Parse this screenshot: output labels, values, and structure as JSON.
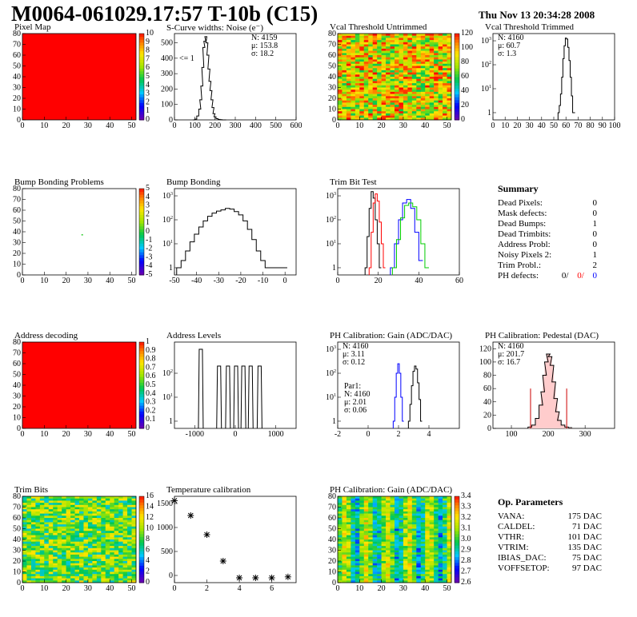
{
  "header": {
    "title": "M0064-061029.17:57 T-10b (C15)",
    "date": "Thu Nov 13 20:34:28 2008"
  },
  "colors": {
    "red": "#ff0000",
    "blue": "#0000ff",
    "green": "#00cc00",
    "black": "#000000"
  },
  "summary": {
    "title": "Summary",
    "rows": [
      {
        "label": "Dead Pixels:",
        "value": "0"
      },
      {
        "label": "Mask defects:",
        "value": "0"
      },
      {
        "label": "Dead Bumps:",
        "value": "1"
      },
      {
        "label": "Dead Trimbits:",
        "value": "0"
      },
      {
        "label": "Address Probl:",
        "value": "0"
      },
      {
        "label": "Noisy Pixels 2:",
        "value": "1"
      },
      {
        "label": "Trim Probl.:",
        "value": "2"
      }
    ],
    "ph_label": "PH defects:",
    "ph_values": [
      "0/",
      "0/",
      "0"
    ]
  },
  "op_params": {
    "title": "Op. Parameters",
    "rows": [
      {
        "label": "VANA:",
        "value": "175 DAC"
      },
      {
        "label": "CALDEL:",
        "value": "71 DAC"
      },
      {
        "label": "VTHR:",
        "value": "101 DAC"
      },
      {
        "label": "VTRIM:",
        "value": "135 DAC"
      },
      {
        "label": "IBIAS_DAC:",
        "value": "75 DAC"
      },
      {
        "label": "VOFFSETOP:",
        "value": "97 DAC"
      }
    ]
  },
  "chart_data": [
    {
      "id": "pixel_map",
      "type": "heatmap",
      "title": "Pixel Map",
      "xlim": [
        0,
        52
      ],
      "ylim": [
        0,
        80
      ],
      "xticks": [
        0,
        10,
        20,
        30,
        40,
        50
      ],
      "yticks": [
        0,
        10,
        20,
        30,
        40,
        50,
        60,
        70,
        80
      ],
      "fill": "uniform",
      "value": 10,
      "palette": {
        "zmax": 10,
        "labels": [
          "0",
          "1",
          "2",
          "3",
          "4",
          "5",
          "6",
          "7",
          "8",
          "9",
          "10"
        ]
      }
    },
    {
      "id": "scurve",
      "type": "line",
      "title": "S-Curve widths: Noise (e⁻)",
      "xlim": [
        0,
        600
      ],
      "ylim": [
        0,
        560
      ],
      "xticks": [
        0,
        100,
        200,
        300,
        400,
        500,
        600
      ],
      "yticks": [
        0,
        100,
        200,
        300,
        400,
        500
      ],
      "stats": [
        "N: 4159",
        "μ: 153.8",
        "σ: 18.2"
      ],
      "annotation": "<= 1",
      "x": [
        95,
        105,
        115,
        125,
        130,
        135,
        140,
        145,
        150,
        155,
        160,
        165,
        170,
        175,
        180,
        185,
        190,
        195,
        200,
        210,
        220,
        230,
        240,
        250
      ],
      "y": [
        0,
        5,
        25,
        70,
        130,
        220,
        340,
        470,
        510,
        540,
        500,
        420,
        330,
        250,
        190,
        130,
        80,
        40,
        20,
        8,
        3,
        1,
        0,
        0
      ]
    },
    {
      "id": "vcal_untrimmed",
      "type": "heatmap",
      "title": "Vcal Threshold Untrimmed",
      "xlim": [
        0,
        52
      ],
      "ylim": [
        0,
        80
      ],
      "xticks": [
        0,
        10,
        20,
        30,
        40,
        50
      ],
      "yticks": [
        0,
        10,
        20,
        30,
        40,
        50,
        60,
        70,
        80
      ],
      "fill": "random",
      "z_center": 0.72,
      "z_spread": 0.28,
      "palette": {
        "zmax": 120,
        "labels": [
          "0",
          "20",
          "40",
          "60",
          "80",
          "100",
          "120"
        ]
      }
    },
    {
      "id": "vcal_trimmed",
      "type": "line",
      "title": "Vcal Threshold Trimmed",
      "xlim": [
        0,
        100
      ],
      "ylog": true,
      "ylim": [
        0.5,
        2000
      ],
      "xticks": [
        0,
        10,
        20,
        30,
        40,
        50,
        60,
        70,
        80,
        90,
        100
      ],
      "yticks_log": [
        1,
        10,
        100,
        1000
      ],
      "stats": [
        "N: 4160",
        "μ: 60.7",
        "σ: 1.3"
      ],
      "x": [
        54,
        55,
        56,
        57,
        58,
        59,
        60,
        61,
        62,
        63,
        64,
        65,
        66,
        67
      ],
      "y": [
        1,
        2,
        6,
        30,
        180,
        620,
        1300,
        1180,
        530,
        150,
        30,
        5,
        1,
        1
      ]
    },
    {
      "id": "bump_problems",
      "type": "heatmap",
      "title": "Bump Bonding Problems",
      "xlim": [
        0,
        52
      ],
      "ylim": [
        0,
        80
      ],
      "xticks": [
        0,
        10,
        20,
        30,
        40,
        50
      ],
      "yticks": [
        0,
        10,
        20,
        30,
        40,
        50,
        60,
        70,
        80
      ],
      "fill": "points",
      "points": [
        {
          "x": 27,
          "y": 37,
          "color": "#33cc33"
        }
      ],
      "palette": {
        "zmax": 5,
        "labels": [
          "-5",
          "-4",
          "-3",
          "-2",
          "-1",
          "0",
          "1",
          "2",
          "3",
          "4",
          "5"
        ]
      }
    },
    {
      "id": "bump_bonding",
      "type": "line",
      "title": "Bump Bonding",
      "xlim": [
        -50,
        5
      ],
      "ylog": true,
      "ylim": [
        0.5,
        2000
      ],
      "xticks": [
        -50,
        -40,
        -30,
        -20,
        -10,
        0
      ],
      "yticks_log": [
        1,
        10,
        100,
        1000
      ],
      "x": [
        -48,
        -46,
        -44,
        -42,
        -40,
        -38,
        -36,
        -34,
        -32,
        -30,
        -28,
        -26,
        -24,
        -22,
        -20,
        -18,
        -16,
        -14,
        -12,
        -10,
        -8,
        0
      ],
      "y": [
        1,
        2,
        5,
        12,
        25,
        50,
        90,
        140,
        190,
        230,
        260,
        300,
        280,
        220,
        160,
        90,
        40,
        15,
        5,
        2,
        1,
        1
      ]
    },
    {
      "id": "trim_bit_test",
      "type": "line",
      "title": "Trim Bit Test",
      "xlim": [
        0,
        60
      ],
      "ylog": true,
      "ylim": [
        0.5,
        2000
      ],
      "xticks": [
        0,
        20,
        40,
        60
      ],
      "yticks_log": [
        1,
        10,
        100,
        1000
      ],
      "series": [
        {
          "color": "#000000",
          "x": [
            14,
            15,
            16,
            17,
            18,
            19,
            20,
            21
          ],
          "y": [
            1,
            20,
            300,
            1500,
            800,
            100,
            10,
            1
          ]
        },
        {
          "color": "#ff0000",
          "x": [
            16,
            17,
            18,
            19,
            20,
            21,
            22,
            23
          ],
          "y": [
            1,
            30,
            500,
            1200,
            600,
            80,
            10,
            1
          ]
        },
        {
          "color": "#0000ff",
          "x": [
            27,
            29,
            31,
            33,
            35,
            37,
            39,
            41
          ],
          "y": [
            1,
            10,
            100,
            500,
            700,
            300,
            30,
            2
          ]
        },
        {
          "color": "#00cc00",
          "x": [
            28,
            30,
            32,
            34,
            36,
            38,
            40,
            42,
            44
          ],
          "y": [
            1,
            15,
            120,
            400,
            500,
            350,
            100,
            10,
            1
          ]
        }
      ]
    },
    {
      "id": "address_decoding",
      "type": "heatmap",
      "title": "Address decoding",
      "xlim": [
        0,
        52
      ],
      "ylim": [
        0,
        80
      ],
      "xticks": [
        0,
        10,
        20,
        30,
        40,
        50
      ],
      "yticks": [
        0,
        10,
        20,
        30,
        40,
        50,
        60,
        70,
        80
      ],
      "fill": "uniform",
      "value": 1,
      "palette": {
        "zmax": 1,
        "labels": [
          "0",
          "0.1",
          "0.2",
          "0.3",
          "0.4",
          "0.5",
          "0.6",
          "0.7",
          "0.8",
          "0.9",
          "1"
        ]
      }
    },
    {
      "id": "address_levels",
      "type": "line",
      "title": "Address Levels",
      "xlim": [
        -1500,
        1500
      ],
      "ylog": true,
      "ylim": [
        0.5,
        2000
      ],
      "xticks": [
        -1000,
        0,
        1000
      ],
      "yticks_log": [
        1,
        10,
        100
      ],
      "peaks": [
        {
          "x": -850,
          "y": 1000
        },
        {
          "x": -400,
          "y": 200
        },
        {
          "x": -180,
          "y": 200
        },
        {
          "x": 20,
          "y": 200
        },
        {
          "x": 200,
          "y": 200
        },
        {
          "x": 380,
          "y": 200
        },
        {
          "x": 600,
          "y": 200
        }
      ]
    },
    {
      "id": "ph_gain",
      "type": "line",
      "title": "PH Calibration: Gain (ADC/DAC)",
      "xlim": [
        -2,
        6
      ],
      "ylog": true,
      "ylim": [
        0.5,
        2000
      ],
      "xticks": [
        -2,
        0,
        2,
        4
      ],
      "yticks_log": [
        1,
        10,
        100,
        1000
      ],
      "stats": [
        "N: 4160",
        "μ: 3.11",
        "σ: 0.12"
      ],
      "par1_stats": [
        "Par1:",
        "N: 4160",
        "μ: 2.01",
        "σ: 0.06"
      ],
      "series": [
        {
          "color": "#000000",
          "x": [
            2.7,
            2.8,
            2.9,
            3.0,
            3.1,
            3.2,
            3.3,
            3.4,
            3.5
          ],
          "y": [
            1,
            5,
            30,
            120,
            200,
            150,
            40,
            8,
            1
          ]
        },
        {
          "color": "#0000ff",
          "x": [
            1.7,
            1.8,
            1.9,
            2.0,
            2.1,
            2.2,
            2.3
          ],
          "y": [
            1,
            10,
            100,
            250,
            100,
            10,
            1
          ]
        }
      ]
    },
    {
      "id": "ph_pedestal",
      "type": "line",
      "title": "PH Calibration: Pedestal (DAC)",
      "xlim": [
        50,
        380
      ],
      "ylim": [
        0,
        130
      ],
      "xticks": [
        100,
        200,
        300
      ],
      "yticks": [
        0,
        20,
        40,
        60,
        80,
        100,
        120
      ],
      "stats": [
        "N: 4160",
        "μ: 201.7",
        "σ: 16.7"
      ],
      "cuts": [
        152,
        250
      ],
      "x": [
        150,
        160,
        170,
        180,
        185,
        190,
        195,
        200,
        205,
        210,
        215,
        220,
        225,
        230,
        240,
        250,
        260
      ],
      "y": [
        2,
        5,
        15,
        35,
        55,
        80,
        100,
        112,
        108,
        95,
        70,
        45,
        25,
        12,
        5,
        2,
        1
      ]
    },
    {
      "id": "trim_bits",
      "type": "heatmap",
      "title": "Trim Bits",
      "xlim": [
        0,
        52
      ],
      "ylim": [
        0,
        80
      ],
      "xticks": [
        0,
        10,
        20,
        30,
        40,
        50
      ],
      "yticks": [
        0,
        10,
        20,
        30,
        40,
        50,
        60,
        70,
        80
      ],
      "fill": "random",
      "z_center": 0.55,
      "z_spread": 0.22,
      "palette": {
        "zmax": 16,
        "labels": [
          "0",
          "2",
          "4",
          "6",
          "8",
          "10",
          "12",
          "14",
          "16"
        ]
      }
    },
    {
      "id": "temperature",
      "type": "scatter",
      "title": "Temperature calibration",
      "xlim": [
        0,
        7.5
      ],
      "ylim": [
        -150,
        1650
      ],
      "xticks": [
        0,
        2,
        4,
        6
      ],
      "yticks": [
        0,
        500,
        1000,
        1500
      ],
      "x": [
        0,
        1,
        2,
        3,
        4,
        5,
        6,
        7
      ],
      "y": [
        1560,
        1250,
        850,
        300,
        -50,
        -50,
        -50,
        -30
      ]
    },
    {
      "id": "ph_gain_map",
      "type": "heatmap",
      "title": "PH Calibration: Gain (ADC/DAC)",
      "xlim": [
        0,
        52
      ],
      "ylim": [
        0,
        80
      ],
      "xticks": [
        0,
        10,
        20,
        30,
        40,
        50
      ],
      "yticks": [
        0,
        10,
        20,
        30,
        40,
        50,
        60,
        70,
        80
      ],
      "fill": "columns",
      "z_center": 0.5,
      "z_spread": 0.15,
      "palette": {
        "zmax": 3.4,
        "labels": [
          "2.6",
          "2.7",
          "2.8",
          "2.9",
          "3.0",
          "3.1",
          "3.2",
          "3.3",
          "3.4"
        ]
      }
    }
  ]
}
